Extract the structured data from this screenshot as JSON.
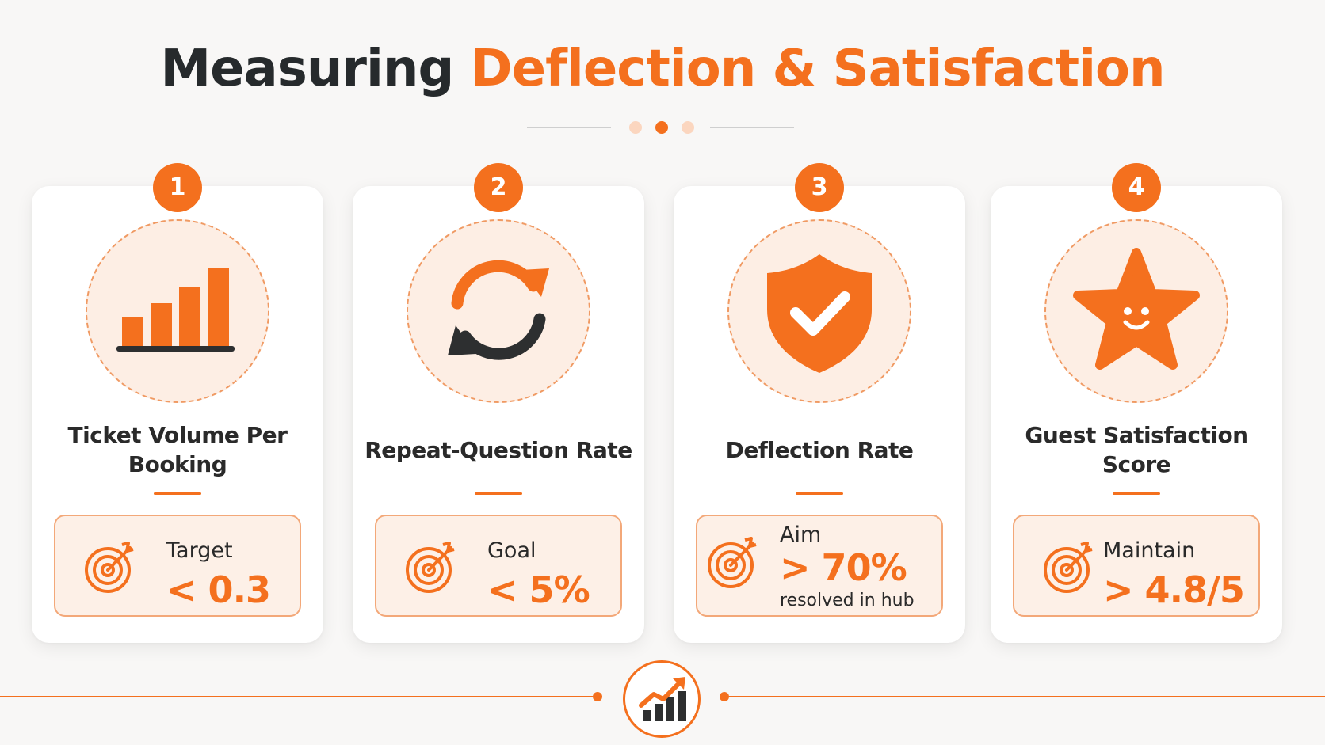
{
  "title": {
    "part1": "Measuring",
    "part2": "Deflection & Satisfaction"
  },
  "colors": {
    "accent": "#f4701e",
    "accent_light": "#fdeee4",
    "dark": "#262a2c"
  },
  "cards": [
    {
      "number": "1",
      "icon": "bar-chart-icon",
      "title": "Ticket Volume Per Booking",
      "target_label": "Target",
      "target_value": "< 0.3",
      "target_note": ""
    },
    {
      "number": "2",
      "icon": "refresh-arrows-icon",
      "title": "Repeat-Question Rate",
      "target_label": "Goal",
      "target_value": "< 5%",
      "target_note": ""
    },
    {
      "number": "3",
      "icon": "shield-check-icon",
      "title": "Deflection Rate",
      "target_label": "Aim",
      "target_value": "> 70%",
      "target_note": "resolved in hub"
    },
    {
      "number": "4",
      "icon": "smiling-star-icon",
      "title": "Guest Satisfaction Score",
      "target_label": "Maintain",
      "target_value": "> 4.8/5",
      "target_note": ""
    }
  ],
  "footer": {
    "icon": "growth-chart-icon"
  }
}
